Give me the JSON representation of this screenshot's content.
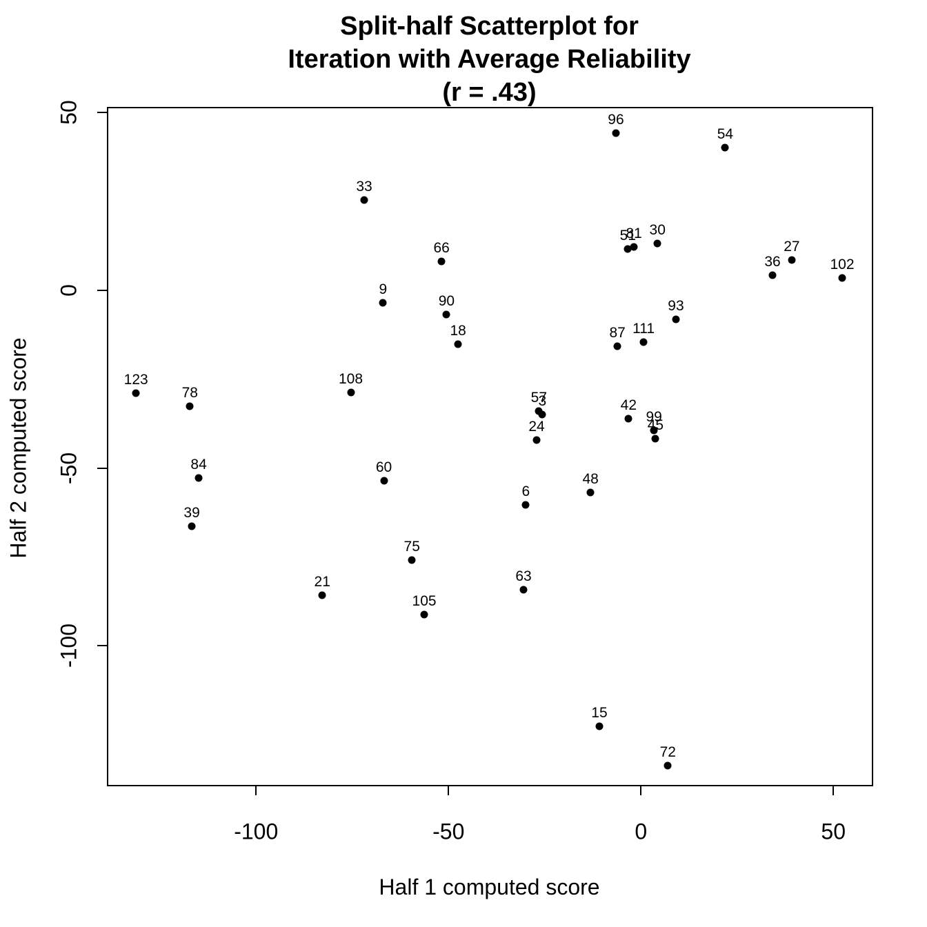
{
  "title": {
    "line1": "Split-half Scatterplot for",
    "line2": "Iteration with Average Reliability",
    "line3": "(r = .43)"
  },
  "axes": {
    "x_label": "Half 1 computed score",
    "y_label": "Half 2 computed score"
  },
  "chart_data": {
    "type": "scatter",
    "title": "Split-half Scatterplot for Iteration with Average Reliability (r = .43)",
    "xlabel": "Half 1 computed score",
    "ylabel": "Half 2 computed score",
    "xlim": [
      -138.4,
      60
    ],
    "ylim": [
      -139.1,
      51.2
    ],
    "x_ticks": [
      -100,
      -50,
      0,
      50
    ],
    "y_ticks": [
      50,
      0,
      -50,
      -100
    ],
    "grid": false,
    "legend": "none",
    "point_color": "#000000",
    "background_color": "#ffffff",
    "points": [
      {
        "label": "96",
        "x": -6.5,
        "y": 44.2
      },
      {
        "label": "54",
        "x": 21.9,
        "y": 40.2
      },
      {
        "label": "33",
        "x": -71.9,
        "y": 25.4
      },
      {
        "label": "30",
        "x": 4.3,
        "y": 13.2
      },
      {
        "label": "81",
        "x": -1.8,
        "y": 12.2
      },
      {
        "label": "51",
        "x": -3.4,
        "y": 11.6
      },
      {
        "label": "27",
        "x": 39.2,
        "y": 8.5
      },
      {
        "label": "66",
        "x": -51.8,
        "y": 8.2
      },
      {
        "label": "36",
        "x": 34.2,
        "y": 4.3
      },
      {
        "label": "102",
        "x": 52.3,
        "y": 3.5
      },
      {
        "label": "9",
        "x": -67.0,
        "y": -3.5
      },
      {
        "label": "90",
        "x": -50.5,
        "y": -6.8
      },
      {
        "label": "93",
        "x": 9.1,
        "y": -8.2
      },
      {
        "label": "111",
        "x": 0.7,
        "y": -14.6
      },
      {
        "label": "18",
        "x": -47.5,
        "y": -15.1
      },
      {
        "label": "87",
        "x": -6.1,
        "y": -15.7
      },
      {
        "label": "108",
        "x": -75.4,
        "y": -28.7
      },
      {
        "label": "123",
        "x": -131.2,
        "y": -28.9
      },
      {
        "label": "78",
        "x": -117.2,
        "y": -32.6
      },
      {
        "label": "57",
        "x": -26.5,
        "y": -34.0
      },
      {
        "label": "3",
        "x": -25.6,
        "y": -34.9
      },
      {
        "label": "42",
        "x": -3.2,
        "y": -36.1
      },
      {
        "label": "99",
        "x": 3.4,
        "y": -39.4
      },
      {
        "label": "45",
        "x": 3.8,
        "y": -41.7
      },
      {
        "label": "24",
        "x": -27.1,
        "y": -42.1
      },
      {
        "label": "84",
        "x": -114.9,
        "y": -52.8
      },
      {
        "label": "60",
        "x": -66.8,
        "y": -53.6
      },
      {
        "label": "48",
        "x": -13.1,
        "y": -56.9
      },
      {
        "label": "6",
        "x": -29.9,
        "y": -60.4
      },
      {
        "label": "39",
        "x": -116.7,
        "y": -66.4
      },
      {
        "label": "75",
        "x": -59.5,
        "y": -75.9
      },
      {
        "label": "63",
        "x": -30.5,
        "y": -84.2
      },
      {
        "label": "21",
        "x": -82.8,
        "y": -85.8
      },
      {
        "label": "105",
        "x": -56.3,
        "y": -91.2
      },
      {
        "label": "15",
        "x": -10.8,
        "y": -122.6
      },
      {
        "label": "72",
        "x": 7.0,
        "y": -133.7
      }
    ]
  }
}
